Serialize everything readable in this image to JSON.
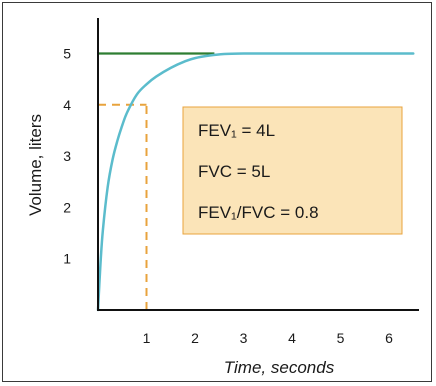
{
  "chart_data": {
    "type": "line",
    "xlabel": "Time, seconds",
    "ylabel": "Volume, liters",
    "xlim": [
      0,
      6.5
    ],
    "ylim": [
      0,
      5.5
    ],
    "x_ticks": [
      "1",
      "2",
      "3",
      "4",
      "5",
      "6"
    ],
    "y_ticks": [
      "1",
      "2",
      "3",
      "4",
      "5"
    ],
    "grid": false,
    "series": [
      {
        "color": "#5bbccc",
        "x": [
          0,
          0.05,
          0.1,
          0.2,
          0.3,
          0.4,
          0.5,
          0.6,
          0.8,
          1.0,
          1.2,
          1.5,
          1.8,
          2.0,
          2.3,
          2.6,
          3.0,
          3.5,
          4.0,
          5.0,
          6.0,
          6.5
        ],
        "y": [
          0,
          0.88,
          1.55,
          2.4,
          2.93,
          3.3,
          3.6,
          3.85,
          4.2,
          4.4,
          4.55,
          4.72,
          4.85,
          4.91,
          4.96,
          4.99,
          5.0,
          5.0,
          5.0,
          5.0,
          5.0,
          5.0
        ]
      }
    ],
    "reference_lines": [
      {
        "kind": "horizontal",
        "y": 5.0,
        "x_from": 0,
        "x_to": 2.4,
        "color": "#2e7d32",
        "style": "solid"
      },
      {
        "kind": "horizontal",
        "y": 4.0,
        "x_from": 0,
        "x_to": 1.0,
        "color": "#e8a33d",
        "style": "dashed"
      },
      {
        "kind": "vertical",
        "x": 1.0,
        "y_from": 0,
        "y_to": 4.0,
        "color": "#e8a33d",
        "style": "dashed"
      }
    ],
    "annotation_box": {
      "background": "#fbe4b8",
      "border": "#e8a33d",
      "lines": [
        "FEV₁ = 4L",
        "FVC = 5L",
        "FEV₁/FVC = 0.8"
      ]
    }
  }
}
